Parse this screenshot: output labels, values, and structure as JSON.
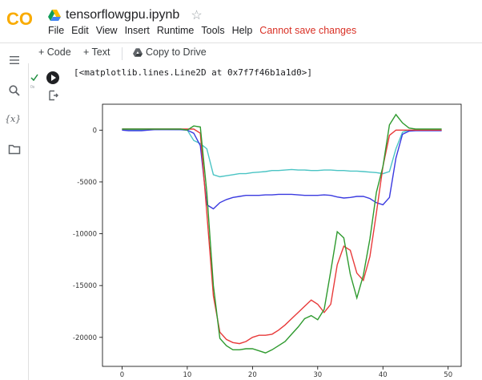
{
  "header": {
    "logo_text": "CO",
    "notebook_title": "tensorflowgpu.ipynb",
    "star_glyph": "☆",
    "menu": [
      "File",
      "Edit",
      "View",
      "Insert",
      "Runtime",
      "Tools",
      "Help"
    ],
    "warning": "Cannot save changes"
  },
  "toolbar": {
    "code_label": "+ Code",
    "text_label": "+ Text",
    "copy_label": "Copy to Drive"
  },
  "sidebar": {
    "icons": [
      "menu-icon",
      "search-icon",
      "variables-icon",
      "folder-icon"
    ],
    "variables_glyph": "{x}"
  },
  "cell": {
    "status_label": "0s",
    "output_text": "[<matplotlib.lines.Line2D at 0x7f7f46b1a1d0>]"
  },
  "colors": {
    "brand_orange": "#F9AB00",
    "warning_red": "#D93025",
    "success_green": "#1E8E3E"
  },
  "chart_data": {
    "type": "line",
    "xlim": [
      -3,
      52
    ],
    "ylim": [
      -22800,
      2500
    ],
    "xticks": [
      0,
      10,
      20,
      30,
      40,
      50
    ],
    "yticks": [
      0,
      -5000,
      -10000,
      -15000,
      -20000
    ],
    "series": [
      {
        "color": "#4AC4C4",
        "x": [
          0,
          1,
          2,
          3,
          4,
          5,
          6,
          7,
          8,
          9,
          10,
          11,
          12,
          13,
          14,
          15,
          16,
          17,
          18,
          19,
          20,
          21,
          22,
          23,
          24,
          25,
          26,
          27,
          28,
          29,
          30,
          31,
          32,
          33,
          34,
          35,
          36,
          37,
          38,
          39,
          40,
          41,
          42,
          43,
          44,
          45,
          46,
          47,
          48,
          49
        ],
        "y": [
          50,
          50,
          40,
          30,
          40,
          50,
          60,
          60,
          50,
          40,
          0,
          -1000,
          -1300,
          -1800,
          -4300,
          -4500,
          -4400,
          -4300,
          -4200,
          -4200,
          -4100,
          -4050,
          -4000,
          -3900,
          -3900,
          -3850,
          -3800,
          -3850,
          -3850,
          -3900,
          -3900,
          -3850,
          -3850,
          -3900,
          -3900,
          -3950,
          -3950,
          -4000,
          -4050,
          -4100,
          -4200,
          -4000,
          -1800,
          -200,
          0,
          0,
          0,
          0,
          0,
          0
        ]
      },
      {
        "color": "#3A3AE0",
        "x": [
          0,
          1,
          2,
          3,
          4,
          5,
          6,
          7,
          8,
          9,
          10,
          11,
          12,
          13,
          14,
          15,
          16,
          17,
          18,
          19,
          20,
          21,
          22,
          23,
          24,
          25,
          26,
          27,
          28,
          29,
          30,
          31,
          32,
          33,
          34,
          35,
          36,
          37,
          38,
          39,
          40,
          41,
          42,
          43,
          44,
          45,
          46,
          47,
          48,
          49
        ],
        "y": [
          0,
          -50,
          -50,
          -50,
          0,
          50,
          50,
          50,
          50,
          50,
          0,
          -300,
          -1500,
          -7200,
          -7600,
          -7000,
          -6700,
          -6500,
          -6400,
          -6300,
          -6300,
          -6300,
          -6250,
          -6250,
          -6200,
          -6200,
          -6200,
          -6250,
          -6300,
          -6300,
          -6300,
          -6250,
          -6300,
          -6450,
          -6550,
          -6500,
          -6400,
          -6400,
          -6600,
          -7000,
          -7200,
          -6500,
          -2700,
          -400,
          -100,
          -50,
          -50,
          -50,
          -50,
          -50
        ]
      },
      {
        "color": "#E83A3A",
        "x": [
          0,
          1,
          2,
          3,
          4,
          5,
          6,
          7,
          8,
          9,
          10,
          11,
          12,
          13,
          14,
          15,
          16,
          17,
          18,
          19,
          20,
          21,
          22,
          23,
          24,
          25,
          26,
          27,
          28,
          29,
          30,
          31,
          32,
          33,
          34,
          35,
          36,
          37,
          38,
          39,
          40,
          41,
          42,
          43,
          44,
          45,
          46,
          47,
          48,
          49
        ],
        "y": [
          100,
          100,
          100,
          100,
          100,
          100,
          100,
          100,
          100,
          100,
          100,
          100,
          -300,
          -8000,
          -16000,
          -19500,
          -20200,
          -20500,
          -20600,
          -20400,
          -20000,
          -19800,
          -19800,
          -19700,
          -19300,
          -18800,
          -18200,
          -17600,
          -17000,
          -16400,
          -16800,
          -17600,
          -16800,
          -13000,
          -11200,
          -11600,
          -13800,
          -14500,
          -12200,
          -8000,
          -3500,
          -500,
          0,
          0,
          0,
          0,
          0,
          0,
          0,
          0
        ]
      },
      {
        "color": "#2E9A2E",
        "x": [
          0,
          1,
          2,
          3,
          4,
          5,
          6,
          7,
          8,
          9,
          10,
          11,
          12,
          13,
          14,
          15,
          16,
          17,
          18,
          19,
          20,
          21,
          22,
          23,
          24,
          25,
          26,
          27,
          28,
          29,
          30,
          31,
          32,
          33,
          34,
          35,
          36,
          37,
          38,
          39,
          40,
          41,
          42,
          43,
          44,
          45,
          46,
          47,
          48,
          49
        ],
        "y": [
          100,
          100,
          100,
          100,
          100,
          100,
          100,
          100,
          100,
          100,
          0,
          400,
          300,
          -6000,
          -15000,
          -20100,
          -20800,
          -21200,
          -21200,
          -21100,
          -21100,
          -21300,
          -21500,
          -21200,
          -20800,
          -20400,
          -19700,
          -19000,
          -18200,
          -17900,
          -18300,
          -17300,
          -13600,
          -9800,
          -10400,
          -13900,
          -16200,
          -14000,
          -10500,
          -6000,
          -3500,
          500,
          1500,
          700,
          200,
          100,
          100,
          100,
          100,
          100
        ]
      }
    ]
  }
}
